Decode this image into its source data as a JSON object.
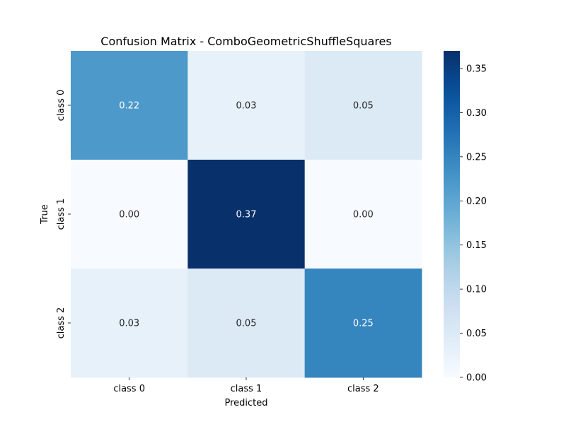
{
  "chart_data": {
    "type": "heatmap",
    "title": "Confusion Matrix - ComboGeometricShuffleSquares",
    "xlabel": "Predicted",
    "ylabel": "True",
    "x_categories": [
      "class 0",
      "class 1",
      "class 2"
    ],
    "y_categories": [
      "class 0",
      "class 1",
      "class 2"
    ],
    "values": [
      [
        0.22,
        0.03,
        0.05
      ],
      [
        0.0,
        0.37,
        0.0
      ],
      [
        0.03,
        0.05,
        0.25
      ]
    ],
    "value_format": "0.00",
    "colormap": "Blues",
    "vmin": 0.0,
    "vmax": 0.37,
    "colorbar_ticks": [
      0.0,
      0.05,
      0.1,
      0.15,
      0.2,
      0.25,
      0.3,
      0.35
    ],
    "colorbar_tick_labels": [
      "0.00",
      "0.05",
      "0.10",
      "0.15",
      "0.20",
      "0.25",
      "0.30",
      "0.35"
    ]
  }
}
